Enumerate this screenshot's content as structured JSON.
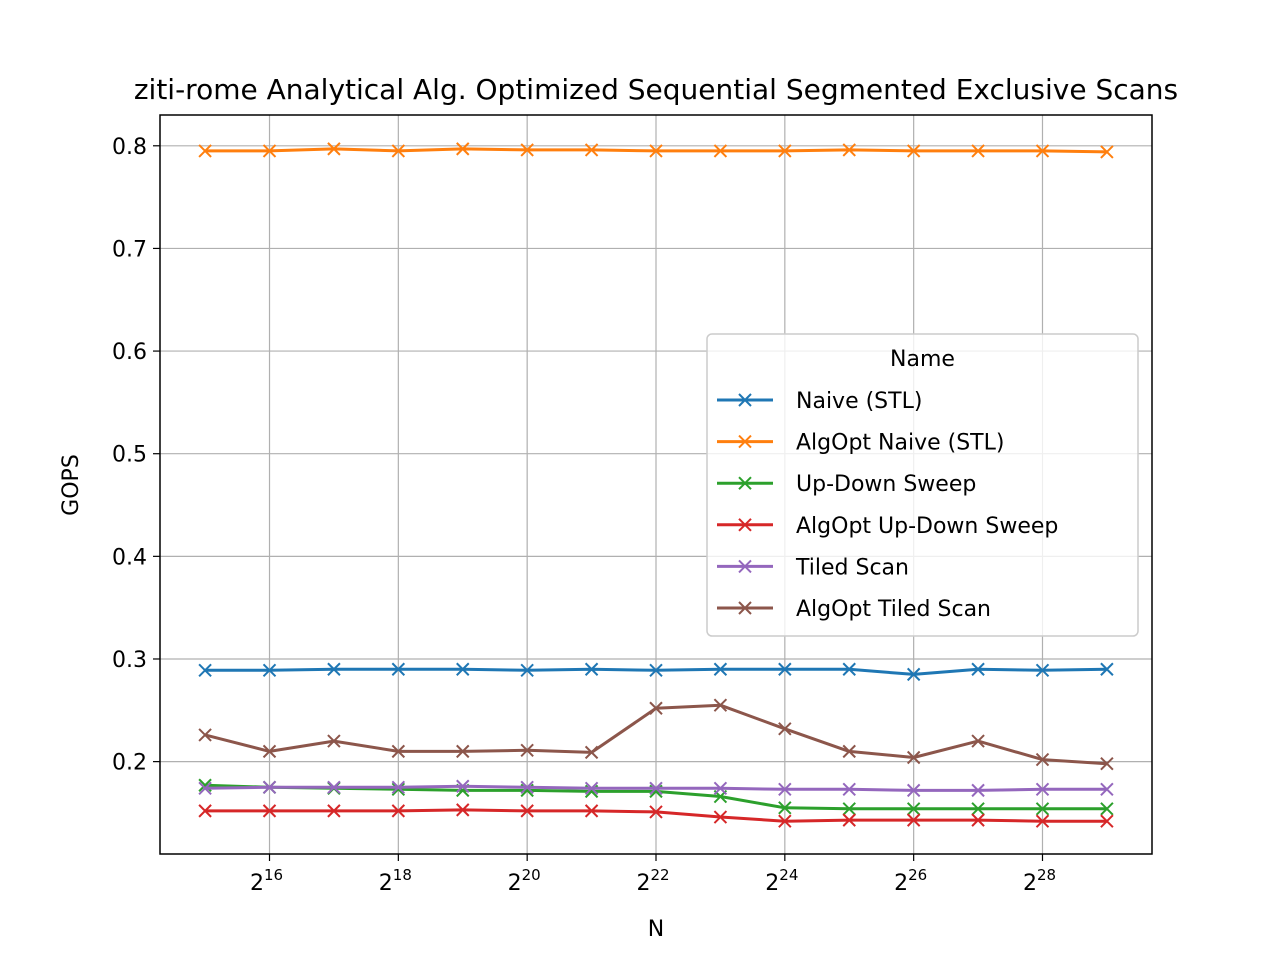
{
  "chart_data": {
    "type": "line",
    "title": "ziti-rome Analytical Alg. Optimized Sequential Segmented Exclusive Scans",
    "xlabel": "N",
    "ylabel": "GOPS",
    "x_scale": "log2",
    "x": [
      32768,
      65536,
      131072,
      262144,
      524288,
      1048576,
      2097152,
      4194304,
      8388608,
      16777216,
      33554432,
      67108864,
      134217728,
      268435456,
      536870912
    ],
    "x_ticks": [
      {
        "value": 65536,
        "base": "2",
        "exp": "16"
      },
      {
        "value": 262144,
        "base": "2",
        "exp": "18"
      },
      {
        "value": 1048576,
        "base": "2",
        "exp": "20"
      },
      {
        "value": 4194304,
        "base": "2",
        "exp": "22"
      },
      {
        "value": 16777216,
        "base": "2",
        "exp": "24"
      },
      {
        "value": 67108864,
        "base": "2",
        "exp": "26"
      },
      {
        "value": 268435456,
        "base": "2",
        "exp": "28"
      }
    ],
    "ylim": [
      0.11,
      0.83
    ],
    "y_ticks": [
      {
        "value": 0.2,
        "label": "0.2"
      },
      {
        "value": 0.3,
        "label": "0.3"
      },
      {
        "value": 0.4,
        "label": "0.4"
      },
      {
        "value": 0.5,
        "label": "0.5"
      },
      {
        "value": 0.6,
        "label": "0.6"
      },
      {
        "value": 0.7,
        "label": "0.7"
      },
      {
        "value": 0.8,
        "label": "0.8"
      }
    ],
    "grid": true,
    "legend": {
      "title": "Name",
      "position": "center-right"
    },
    "series": [
      {
        "name": "Naive (STL)",
        "color": "#1f77b4",
        "values": [
          0.289,
          0.289,
          0.29,
          0.29,
          0.29,
          0.289,
          0.29,
          0.289,
          0.29,
          0.29,
          0.29,
          0.285,
          0.29,
          0.289,
          0.29
        ]
      },
      {
        "name": "AlgOpt Naive (STL)",
        "color": "#ff7f0e",
        "values": [
          0.795,
          0.795,
          0.797,
          0.795,
          0.797,
          0.796,
          0.796,
          0.795,
          0.795,
          0.795,
          0.796,
          0.795,
          0.795,
          0.795,
          0.794
        ]
      },
      {
        "name": "Up-Down Sweep",
        "color": "#2ca02c",
        "values": [
          0.177,
          0.175,
          0.174,
          0.173,
          0.172,
          0.172,
          0.171,
          0.171,
          0.166,
          0.155,
          0.154,
          0.154,
          0.154,
          0.154,
          0.154
        ]
      },
      {
        "name": "AlgOpt Up-Down Sweep",
        "color": "#d62728",
        "values": [
          0.152,
          0.152,
          0.152,
          0.152,
          0.153,
          0.152,
          0.152,
          0.151,
          0.146,
          0.142,
          0.143,
          0.143,
          0.143,
          0.142,
          0.142
        ]
      },
      {
        "name": "Tiled Scan",
        "color": "#9467bd",
        "values": [
          0.174,
          0.175,
          0.175,
          0.175,
          0.176,
          0.175,
          0.174,
          0.174,
          0.174,
          0.173,
          0.173,
          0.172,
          0.172,
          0.173,
          0.173
        ]
      },
      {
        "name": "AlgOpt Tiled Scan",
        "color": "#8c564b",
        "values": [
          0.226,
          0.21,
          0.22,
          0.21,
          0.21,
          0.211,
          0.209,
          0.252,
          0.255,
          0.232,
          0.21,
          0.204,
          0.22,
          0.202,
          0.198
        ]
      }
    ]
  }
}
